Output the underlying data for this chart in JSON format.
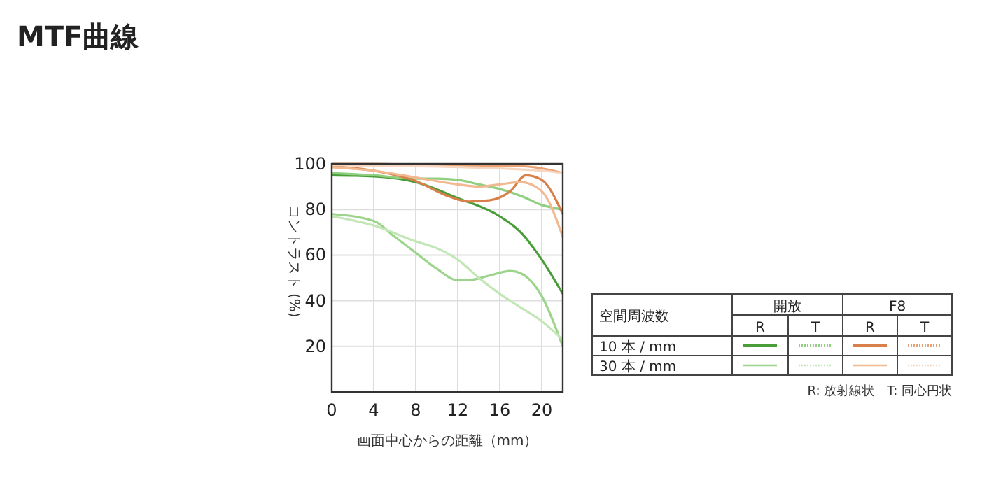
{
  "chart_data": {
    "type": "line",
    "title": "MTF曲線",
    "xlabel": "画面中心からの距離（mm）",
    "ylabel": "コントラスト (%)",
    "xlim": [
      0,
      22
    ],
    "xticks": [
      0,
      4,
      8,
      12,
      16,
      20
    ],
    "ylim": [
      0,
      100
    ],
    "yticks": [
      20,
      40,
      60,
      80,
      100
    ],
    "grid": true,
    "marker": "none",
    "series": [
      {
        "color": "#4a9e3a",
        "x": [
          0,
          4,
          8,
          12,
          16,
          18,
          20,
          22
        ],
        "values": [
          95,
          94.5,
          92,
          85,
          77,
          70,
          58,
          43
        ]
      },
      {
        "color": "#8fcf7f",
        "x": [
          0,
          4,
          8,
          10,
          12,
          14,
          16,
          18,
          20,
          22
        ],
        "values": [
          96,
          95,
          93.5,
          93.5,
          93,
          91,
          89,
          86,
          82,
          80
        ]
      },
      {
        "color": "#d9804a",
        "x": [
          0,
          4,
          8,
          11,
          13,
          15,
          17,
          18.5,
          20,
          22
        ],
        "values": [
          99,
          97,
          92.5,
          86,
          83.5,
          84,
          88,
          95,
          93,
          78
        ]
      },
      {
        "color": "#e8a070",
        "x": [
          0,
          4,
          8,
          12,
          16,
          18,
          20,
          22
        ],
        "values": [
          100,
          100,
          99.5,
          99,
          99,
          99,
          98,
          96
        ]
      },
      {
        "color": "#9cd48c",
        "x": [
          0,
          4,
          6,
          8,
          10,
          12,
          13,
          15,
          17,
          18,
          20,
          22
        ],
        "values": [
          78,
          75,
          68,
          61,
          54,
          49,
          49,
          51,
          53,
          52,
          42,
          20
        ]
      },
      {
        "color": "#c2e6b6",
        "x": [
          0,
          4,
          8,
          10,
          12,
          14,
          16,
          18,
          20,
          22
        ],
        "values": [
          77,
          73,
          66,
          63,
          58,
          50,
          43,
          37,
          31,
          23
        ]
      },
      {
        "color": "#f2b890",
        "x": [
          0,
          4,
          8,
          12,
          14,
          16,
          18,
          20,
          22
        ],
        "values": [
          98.5,
          97,
          94,
          91,
          90,
          91,
          92,
          88,
          68
        ]
      },
      {
        "color": "#f7d6c0",
        "x": [
          0,
          8,
          16,
          20,
          22
        ],
        "values": [
          99.5,
          99,
          98,
          97,
          96
        ]
      }
    ],
    "annotations": [
      "空間周波数",
      "開放",
      "F8",
      "R",
      "T",
      "R",
      "T",
      "10 本 / mm",
      "30 本 / mm",
      "R: 放射線状　T: 同心円状"
    ]
  }
}
